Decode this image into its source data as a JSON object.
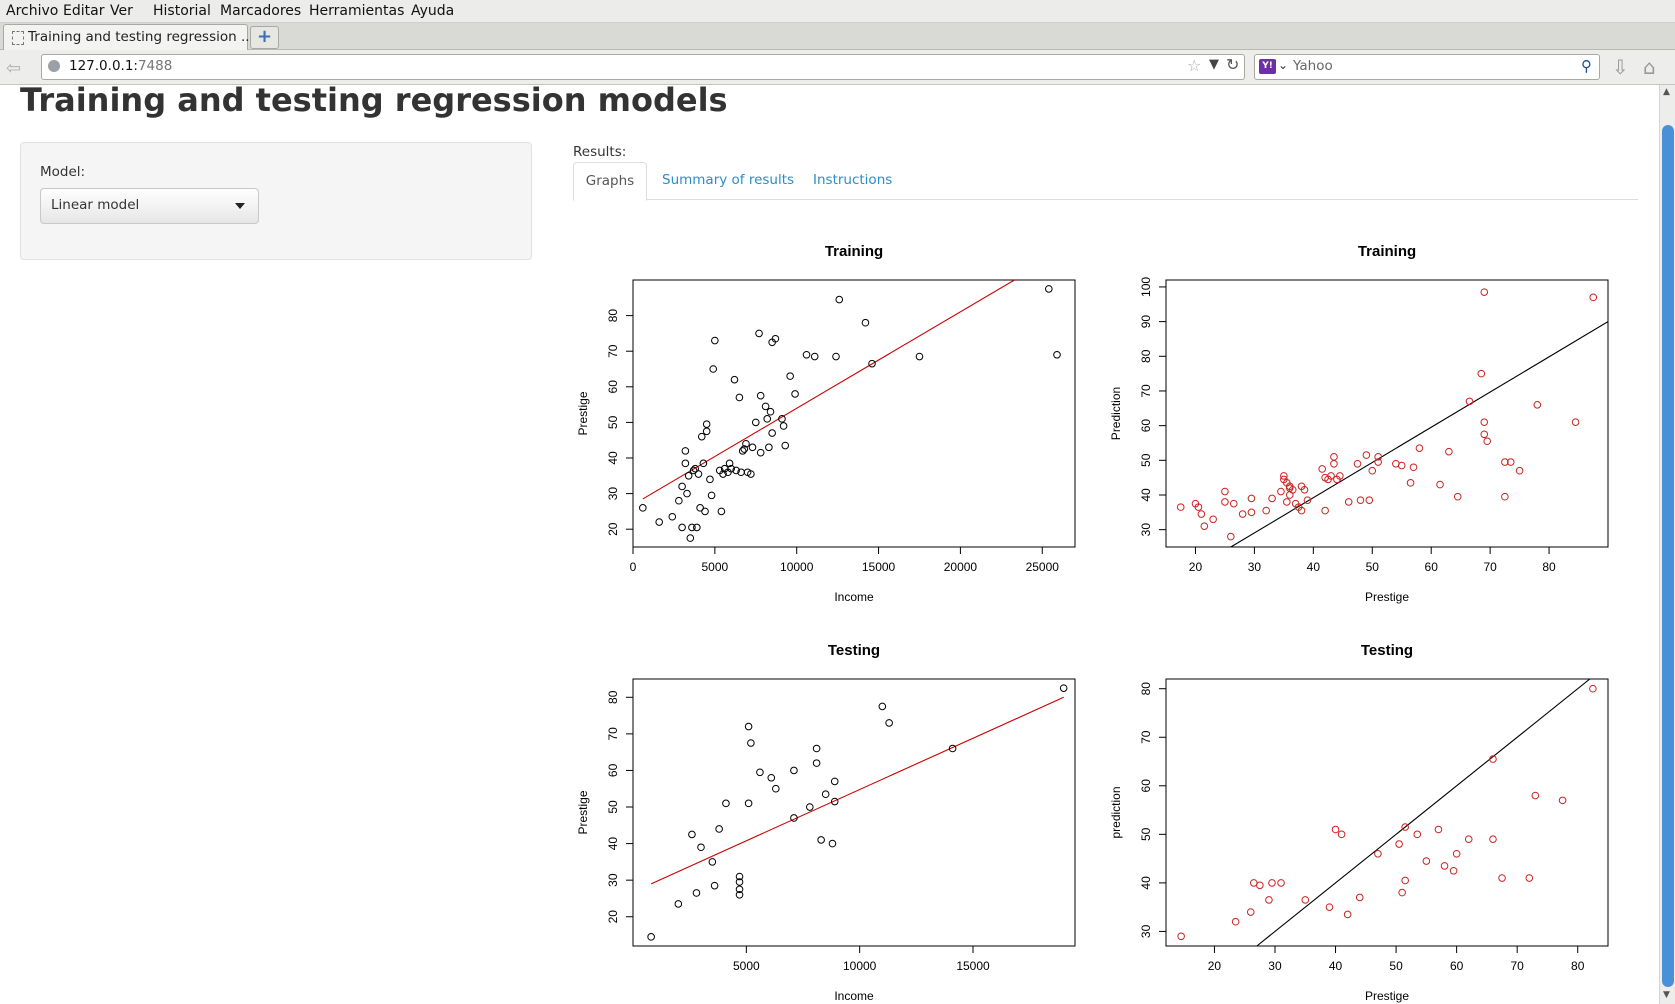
{
  "menu": [
    "Archivo",
    "Editar",
    "Ver",
    "Historial",
    "Marcadores",
    "Herramientas",
    "Ayuda"
  ],
  "browser": {
    "tab_title": "Training and testing regression ...",
    "url_host": "127.0.0.1:",
    "url_port": "7488",
    "search_engine": "Yahoo",
    "search_placeholder": "Yahoo",
    "new_tab_label": "+"
  },
  "page": {
    "title": "Training and testing regression models",
    "model_label": "Model:",
    "model_value": "Linear model",
    "results_label": "Results:",
    "tabs": [
      "Graphs",
      "Summary of results",
      "Instructions"
    ]
  },
  "chart_data": [
    {
      "type": "scatter",
      "title": "Training",
      "xlabel": "Income",
      "ylabel": "Prestige",
      "xlim": [
        0,
        27000
      ],
      "ylim": [
        15,
        90
      ],
      "xticks": [
        0,
        5000,
        10000,
        15000,
        20000,
        25000
      ],
      "yticks": [
        20,
        30,
        40,
        50,
        60,
        70,
        80
      ],
      "point_color": "#000000",
      "line_color": "#cc0000",
      "fit_line": [
        [
          600,
          28.5
        ],
        [
          23300,
          90
        ]
      ],
      "points": [
        [
          600,
          26
        ],
        [
          1600,
          22
        ],
        [
          2400,
          23.5
        ],
        [
          2800,
          28
        ],
        [
          3000,
          32
        ],
        [
          3000,
          20.5
        ],
        [
          3200,
          42
        ],
        [
          3200,
          38.5
        ],
        [
          3300,
          30
        ],
        [
          3400,
          35
        ],
        [
          3500,
          17.5
        ],
        [
          3600,
          20.5
        ],
        [
          3700,
          36.5
        ],
        [
          3800,
          37
        ],
        [
          3900,
          20.5
        ],
        [
          4000,
          35.5
        ],
        [
          4100,
          26
        ],
        [
          4200,
          46
        ],
        [
          4300,
          38.5
        ],
        [
          4400,
          25
        ],
        [
          4500,
          47.5
        ],
        [
          4500,
          49.5
        ],
        [
          4700,
          34
        ],
        [
          4800,
          29.5
        ],
        [
          4900,
          65
        ],
        [
          5000,
          73
        ],
        [
          5300,
          36.5
        ],
        [
          5400,
          25
        ],
        [
          5500,
          35.5
        ],
        [
          5600,
          37
        ],
        [
          5800,
          36
        ],
        [
          5900,
          38.5
        ],
        [
          6000,
          37
        ],
        [
          6200,
          62
        ],
        [
          6300,
          36.5
        ],
        [
          6500,
          57
        ],
        [
          6600,
          36
        ],
        [
          6700,
          42
        ],
        [
          6800,
          42.5
        ],
        [
          6900,
          44
        ],
        [
          7000,
          36
        ],
        [
          7200,
          35.5
        ],
        [
          7300,
          43
        ],
        [
          7500,
          50
        ],
        [
          7700,
          75
        ],
        [
          7800,
          57.5
        ],
        [
          7800,
          41.5
        ],
        [
          8100,
          54.5
        ],
        [
          8200,
          51
        ],
        [
          8300,
          43
        ],
        [
          8400,
          53
        ],
        [
          8500,
          72.5
        ],
        [
          8500,
          47
        ],
        [
          8700,
          73.5
        ],
        [
          9100,
          51
        ],
        [
          9200,
          49
        ],
        [
          9300,
          43.5
        ],
        [
          9600,
          63
        ],
        [
          9900,
          58
        ],
        [
          10600,
          69
        ],
        [
          11100,
          68.5
        ],
        [
          12400,
          68.5
        ],
        [
          12600,
          84.5
        ],
        [
          14200,
          78
        ],
        [
          14600,
          66.5
        ],
        [
          17500,
          68.5
        ],
        [
          25400,
          87.5
        ],
        [
          25900,
          69
        ]
      ]
    },
    {
      "type": "scatter",
      "title": "Training",
      "xlabel": "Prestige",
      "ylabel": "Prediction",
      "xlim": [
        15,
        90
      ],
      "ylim": [
        25,
        102
      ],
      "xticks": [
        20,
        30,
        40,
        50,
        60,
        70,
        80
      ],
      "yticks": [
        30,
        40,
        50,
        60,
        70,
        80,
        90,
        100
      ],
      "point_color": "#cc2222",
      "line_color": "#000000",
      "fit_line": [
        [
          26,
          25
        ],
        [
          90,
          90
        ]
      ],
      "points": [
        [
          17.5,
          36.5
        ],
        [
          20,
          37.5
        ],
        [
          20.5,
          36.5
        ],
        [
          21,
          34.5
        ],
        [
          21.5,
          31
        ],
        [
          23,
          33
        ],
        [
          25,
          41
        ],
        [
          25,
          38
        ],
        [
          26,
          28
        ],
        [
          26.5,
          37.5
        ],
        [
          28,
          34.5
        ],
        [
          29.5,
          35
        ],
        [
          29.5,
          39
        ],
        [
          32,
          35.5
        ],
        [
          33,
          39
        ],
        [
          34.5,
          41
        ],
        [
          35,
          44.5
        ],
        [
          35,
          45.5
        ],
        [
          35.5,
          43.5
        ],
        [
          35.5,
          38
        ],
        [
          36,
          42
        ],
        [
          36,
          42.5
        ],
        [
          36,
          40
        ],
        [
          36.5,
          41.5
        ],
        [
          37,
          37.5
        ],
        [
          37.5,
          36.5
        ],
        [
          38,
          35.5
        ],
        [
          38,
          42.5
        ],
        [
          38.5,
          41.5
        ],
        [
          39,
          38.5
        ],
        [
          41.5,
          47.5
        ],
        [
          42,
          45
        ],
        [
          42,
          35.5
        ],
        [
          42.5,
          44.5
        ],
        [
          43,
          45.5
        ],
        [
          43.5,
          51
        ],
        [
          43.5,
          49
        ],
        [
          44,
          44.5
        ],
        [
          44.5,
          45.5
        ],
        [
          46,
          38
        ],
        [
          47.5,
          49
        ],
        [
          48,
          38.5
        ],
        [
          49,
          51.5
        ],
        [
          49.5,
          38.5
        ],
        [
          50,
          47
        ],
        [
          51,
          49.5
        ],
        [
          51,
          51
        ],
        [
          54,
          49
        ],
        [
          55,
          48.5
        ],
        [
          56.5,
          43.5
        ],
        [
          57,
          48
        ],
        [
          58,
          53.5
        ],
        [
          61.5,
          43
        ],
        [
          63,
          52.5
        ],
        [
          64.5,
          39.5
        ],
        [
          66.5,
          67
        ],
        [
          68.5,
          75
        ],
        [
          69,
          61
        ],
        [
          69,
          98.5
        ],
        [
          69,
          57.5
        ],
        [
          69.5,
          55.5
        ],
        [
          72.5,
          49.5
        ],
        [
          72.5,
          39.5
        ],
        [
          73.5,
          49.5
        ],
        [
          75,
          47
        ],
        [
          78,
          66
        ],
        [
          84.5,
          61
        ],
        [
          87.5,
          97
        ]
      ]
    },
    {
      "type": "scatter",
      "title": "Testing",
      "xlabel": "Income",
      "ylabel": "Prestige",
      "xlim": [
        0,
        19500
      ],
      "ylim": [
        12,
        85
      ],
      "xticks": [
        5000,
        10000,
        15000
      ],
      "yticks": [
        20,
        30,
        40,
        50,
        60,
        70,
        80
      ],
      "point_color": "#000000",
      "line_color": "#cc0000",
      "fit_line": [
        [
          800,
          29
        ],
        [
          19000,
          80
        ]
      ],
      "points": [
        [
          800,
          14.5
        ],
        [
          2000,
          23.5
        ],
        [
          2600,
          42.5
        ],
        [
          2800,
          26.5
        ],
        [
          3000,
          39
        ],
        [
          3500,
          35
        ],
        [
          3600,
          28.5
        ],
        [
          3800,
          44
        ],
        [
          4100,
          51
        ],
        [
          4700,
          29.5
        ],
        [
          4700,
          31
        ],
        [
          4700,
          27.5
        ],
        [
          4700,
          26
        ],
        [
          5100,
          51
        ],
        [
          5100,
          72
        ],
        [
          5200,
          67.5
        ],
        [
          5600,
          59.5
        ],
        [
          6100,
          58
        ],
        [
          6300,
          55
        ],
        [
          7100,
          60
        ],
        [
          7100,
          47
        ],
        [
          7800,
          50
        ],
        [
          8100,
          66
        ],
        [
          8100,
          62
        ],
        [
          8300,
          41
        ],
        [
          8500,
          53.5
        ],
        [
          8800,
          40
        ],
        [
          8900,
          57
        ],
        [
          8900,
          51.5
        ],
        [
          11000,
          77.5
        ],
        [
          11300,
          73
        ],
        [
          14100,
          66
        ],
        [
          19000,
          82.5
        ]
      ]
    },
    {
      "type": "scatter",
      "title": "Testing",
      "xlabel": "Prestige",
      "ylabel": "prediction",
      "xlim": [
        12,
        85
      ],
      "ylim": [
        27,
        82
      ],
      "xticks": [
        20,
        30,
        40,
        50,
        60,
        70,
        80
      ],
      "yticks": [
        30,
        40,
        50,
        60,
        70,
        80
      ],
      "point_color": "#cc2222",
      "line_color": "#000000",
      "fit_line": [
        [
          27,
          27
        ],
        [
          82,
          82
        ]
      ],
      "points": [
        [
          14.5,
          29
        ],
        [
          23.5,
          32
        ],
        [
          26,
          34
        ],
        [
          26.5,
          40
        ],
        [
          27.5,
          39.5
        ],
        [
          29,
          36.5
        ],
        [
          29.5,
          40
        ],
        [
          31,
          40
        ],
        [
          35,
          36.5
        ],
        [
          39,
          35
        ],
        [
          40,
          51
        ],
        [
          41,
          50
        ],
        [
          42,
          33.5
        ],
        [
          44,
          37
        ],
        [
          47,
          46
        ],
        [
          50.5,
          48
        ],
        [
          51,
          38
        ],
        [
          51.5,
          40.5
        ],
        [
          51.5,
          51.5
        ],
        [
          53.5,
          50
        ],
        [
          55,
          44.5
        ],
        [
          57,
          51
        ],
        [
          58,
          43.5
        ],
        [
          59.5,
          42.5
        ],
        [
          60,
          46
        ],
        [
          62,
          49
        ],
        [
          66,
          65.5
        ],
        [
          66,
          49
        ],
        [
          67.5,
          41
        ],
        [
          72,
          41
        ],
        [
          73,
          58
        ],
        [
          77.5,
          57
        ],
        [
          82.5,
          80
        ]
      ]
    }
  ]
}
